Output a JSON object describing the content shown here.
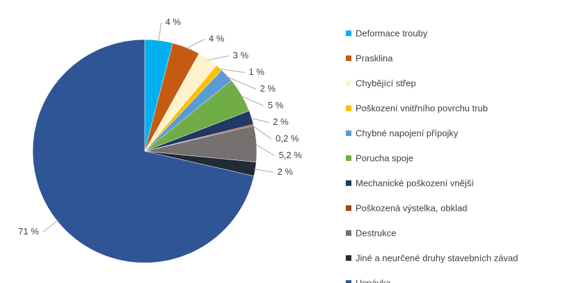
{
  "chart_data": {
    "type": "pie",
    "categories": [
      "Deformace trouby",
      "Prasklina",
      "Chybějící střep",
      "Poškození vnitřního povrchu trub",
      "Chybné napojení přípojky",
      "Porucha spoje",
      "Mechanické poškození vnější",
      "Poškozená výstelka, obklad",
      "Destrukce",
      "Jiné a neurčené druhy  stavebních závad",
      "Ucpávka"
    ],
    "values": [
      4,
      4,
      3,
      1,
      2,
      5,
      2,
      0.2,
      5.2,
      2,
      71
    ],
    "value_labels": [
      "4 %",
      "4 %",
      "3 %",
      "1 %",
      "2 %",
      "5 %",
      "2 %",
      "0,2 %",
      "5,2 %",
      "2 %",
      "71 %"
    ],
    "colors": [
      "#00b0f0",
      "#c55a11",
      "#fff2cc",
      "#ffc000",
      "#5b9bd5",
      "#70ad47",
      "#203864",
      "#a5431a",
      "#767171",
      "#222a35",
      "#2f5597"
    ],
    "legend": "right"
  }
}
